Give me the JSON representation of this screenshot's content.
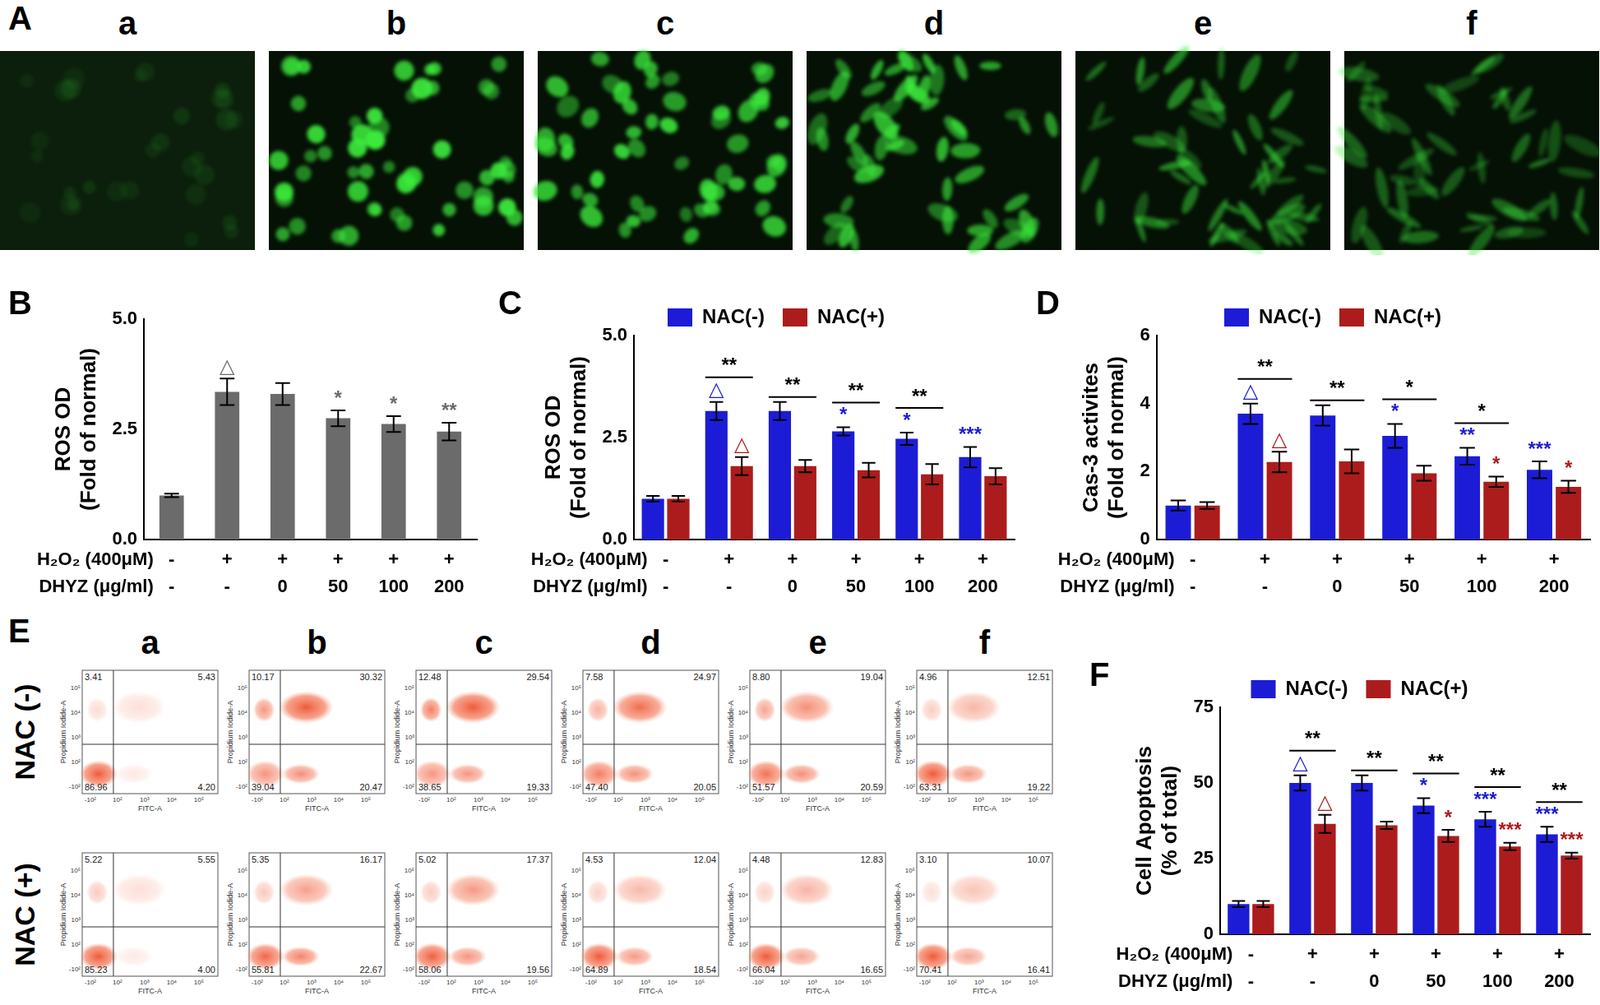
{
  "panels": {
    "A": {
      "label": "A",
      "images": [
        "a",
        "b",
        "c",
        "d",
        "e",
        "f"
      ]
    },
    "E": {
      "label": "E",
      "columns": [
        "a",
        "b",
        "c",
        "d",
        "e",
        "f"
      ],
      "x_label": "FITC-A",
      "y_label": "Propidium Iodide-A",
      "x_ticks": [
        "-10²",
        "10²",
        "10³",
        "10⁴",
        "10⁵"
      ],
      "y_ticks": [
        "-10²",
        "10²",
        "10³",
        "10⁴",
        "10⁵"
      ],
      "rows": [
        {
          "label": "NAC (-)",
          "plots": [
            {
              "ul": "3.41",
              "ur": "5.43",
              "ll": "86.96",
              "lr": "4.20"
            },
            {
              "ul": "10.17",
              "ur": "30.32",
              "ll": "39.04",
              "lr": "20.47"
            },
            {
              "ul": "12.48",
              "ur": "29.54",
              "ll": "38.65",
              "lr": "19.33"
            },
            {
              "ul": "7.58",
              "ur": "24.97",
              "ll": "47.40",
              "lr": "20.05"
            },
            {
              "ul": "8.80",
              "ur": "19.04",
              "ll": "51.57",
              "lr": "20.59"
            },
            {
              "ul": "4.96",
              "ur": "12.51",
              "ll": "63.31",
              "lr": "19.22"
            }
          ]
        },
        {
          "label": "NAC (+)",
          "plots": [
            {
              "ul": "5.22",
              "ur": "5.55",
              "ll": "85.23",
              "lr": "4.00"
            },
            {
              "ul": "5.35",
              "ur": "16.17",
              "ll": "55.81",
              "lr": "22.67"
            },
            {
              "ul": "5.02",
              "ur": "17.37",
              "ll": "58.06",
              "lr": "19.56"
            },
            {
              "ul": "4.53",
              "ur": "12.04",
              "ll": "64.89",
              "lr": "18.54"
            },
            {
              "ul": "4.48",
              "ur": "12.83",
              "ll": "66.04",
              "lr": "16.65"
            },
            {
              "ul": "3.10",
              "ur": "10.07",
              "ll": "70.41",
              "lr": "16.41"
            }
          ]
        }
      ]
    }
  },
  "chart_data": [
    {
      "label": "B",
      "type": "bar",
      "y_label": [
        "ROS OD",
        "(Fold of normal)"
      ],
      "row_labels": [
        "H₂O₂ (400μM)",
        "DHYZ (μg/ml)"
      ],
      "h2o2": [
        "-",
        "+",
        "+",
        "+",
        "+",
        "+"
      ],
      "dhyz": [
        "-",
        "-",
        "0",
        "50",
        "100",
        "200"
      ],
      "ylim": [
        0,
        5
      ],
      "yticks": [
        {
          "value": 0,
          "label": "0.0"
        },
        {
          "value": 2.5,
          "label": "2.5"
        },
        {
          "value": 5,
          "label": "5.0"
        }
      ],
      "series": [
        {
          "color": "#6b6b6b",
          "values": [
            1.0,
            3.35,
            3.3,
            2.75,
            2.62,
            2.45
          ],
          "errors": [
            0.04,
            0.3,
            0.25,
            0.18,
            0.18,
            0.2
          ],
          "marks": [
            null,
            "△",
            null,
            "*",
            "*",
            "**"
          ]
        }
      ]
    },
    {
      "label": "C",
      "type": "bar",
      "y_label": [
        "ROS OD",
        "(Fold of normal)"
      ],
      "legend": "top",
      "row_labels": [
        "H₂O₂ (400μM)",
        "DHYZ (μg/ml)"
      ],
      "h2o2": [
        "-",
        "+",
        "+",
        "+",
        "+",
        "+"
      ],
      "dhyz": [
        "-",
        "-",
        "0",
        "50",
        "100",
        "200"
      ],
      "ylim": [
        0,
        5
      ],
      "yticks": [
        {
          "value": 0,
          "label": "0.0"
        },
        {
          "value": 2.5,
          "label": "2.5"
        },
        {
          "value": 5,
          "label": "5.0"
        }
      ],
      "series": [
        {
          "name": "NAC(-)",
          "color": "#1c1cd6",
          "values": [
            1.0,
            3.15,
            3.15,
            2.65,
            2.47,
            2.02
          ],
          "errors": [
            0.07,
            0.22,
            0.22,
            0.1,
            0.15,
            0.25
          ],
          "marks": [
            null,
            "△",
            null,
            "*",
            "*",
            "***"
          ]
        },
        {
          "name": "NAC(+)",
          "color": "#ac1c1c",
          "values": [
            1.0,
            1.8,
            1.8,
            1.7,
            1.6,
            1.55
          ],
          "errors": [
            0.07,
            0.22,
            0.15,
            0.18,
            0.25,
            0.2
          ],
          "marks": [
            null,
            "△",
            null,
            null,
            null,
            null
          ]
        }
      ],
      "pair_marks": [
        null,
        "**",
        "**",
        "**",
        "**",
        null
      ]
    },
    {
      "label": "D",
      "type": "bar",
      "y_label": [
        "Cas-3 activites",
        "(Fold of normal)"
      ],
      "legend": "top",
      "row_labels": [
        "H₂O₂ (400μM)",
        "DHYZ (μg/ml)"
      ],
      "h2o2": [
        "-",
        "+",
        "+",
        "+",
        "+",
        "+"
      ],
      "dhyz": [
        "-",
        "-",
        "0",
        "50",
        "100",
        "200"
      ],
      "ylim": [
        0,
        6
      ],
      "yticks": [
        0,
        2,
        4,
        6
      ],
      "series": [
        {
          "name": "NAC(-)",
          "color": "#1c1cd6",
          "values": [
            1.0,
            3.7,
            3.65,
            3.05,
            2.45,
            2.05
          ],
          "errors": [
            0.15,
            0.3,
            0.3,
            0.35,
            0.25,
            0.25
          ],
          "marks": [
            null,
            "△",
            null,
            "*",
            "**",
            "***"
          ]
        },
        {
          "name": "NAC(+)",
          "color": "#ac1c1c",
          "values": [
            1.0,
            2.28,
            2.3,
            1.95,
            1.7,
            1.55
          ],
          "errors": [
            0.1,
            0.3,
            0.35,
            0.22,
            0.15,
            0.18
          ],
          "marks": [
            null,
            "△",
            null,
            null,
            "*",
            "*"
          ]
        }
      ],
      "pair_marks": [
        null,
        "**",
        "**",
        "*",
        "*",
        null
      ]
    },
    {
      "label": "F",
      "type": "bar",
      "y_label": [
        "Cell Apoptosis",
        "(% of total)"
      ],
      "legend": "top",
      "row_labels": [
        "H₂O₂ (400μM)",
        "DHYZ (μg/ml)"
      ],
      "h2o2": [
        "-",
        "+",
        "+",
        "+",
        "+",
        "+"
      ],
      "dhyz": [
        "-",
        "-",
        "0",
        "50",
        "100",
        "200"
      ],
      "ylim": [
        0,
        75
      ],
      "yticks": [
        0,
        25,
        50,
        75
      ],
      "series": [
        {
          "name": "NAC(-)",
          "color": "#1c1cd6",
          "values": [
            10,
            50,
            50,
            42.5,
            38,
            33
          ],
          "errors": [
            1,
            2.5,
            2.5,
            2.5,
            2.5,
            2.5
          ],
          "marks": [
            null,
            "△",
            null,
            "*",
            "***",
            "***"
          ]
        },
        {
          "name": "NAC(+)",
          "color": "#ac1c1c",
          "values": [
            10,
            36.5,
            36,
            32.5,
            29,
            26
          ],
          "errors": [
            1,
            3,
            1.2,
            2,
            1.2,
            1
          ],
          "marks": [
            null,
            "△",
            null,
            "*",
            "***",
            "***"
          ]
        }
      ],
      "pair_marks": [
        null,
        "**",
        "**",
        "**",
        "**",
        "**"
      ]
    }
  ]
}
